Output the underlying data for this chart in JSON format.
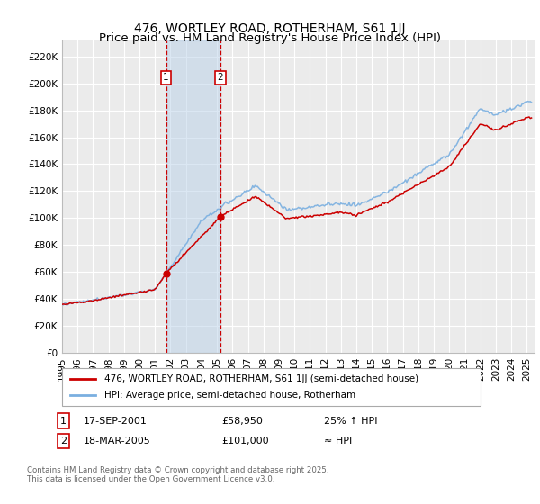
{
  "title": "476, WORTLEY ROAD, ROTHERHAM, S61 1JJ",
  "subtitle": "Price paid vs. HM Land Registry's House Price Index (HPI)",
  "yticks": [
    0,
    20000,
    40000,
    60000,
    80000,
    100000,
    120000,
    140000,
    160000,
    180000,
    200000,
    220000
  ],
  "ytick_labels": [
    "£0",
    "£20K",
    "£40K",
    "£60K",
    "£80K",
    "£100K",
    "£120K",
    "£140K",
    "£160K",
    "£180K",
    "£200K",
    "£220K"
  ],
  "ylim": [
    0,
    232000
  ],
  "xlim_start": 1995.0,
  "xlim_end": 2025.5,
  "xtick_years": [
    1995,
    1996,
    1997,
    1998,
    1999,
    2000,
    2001,
    2002,
    2003,
    2004,
    2005,
    2006,
    2007,
    2008,
    2009,
    2010,
    2011,
    2012,
    2013,
    2014,
    2015,
    2016,
    2017,
    2018,
    2019,
    2020,
    2021,
    2022,
    2023,
    2024,
    2025
  ],
  "background_color": "#ffffff",
  "plot_bg_color": "#ebebeb",
  "grid_color": "#ffffff",
  "hpi_line_color": "#7aafe0",
  "price_line_color": "#cc0000",
  "sale1_date_x": 2001.71,
  "sale1_price": 58950,
  "sale2_date_x": 2005.21,
  "sale2_price": 101000,
  "shade_color": "#b8d0e8",
  "shade_alpha": 0.5,
  "legend_entries": [
    "476, WORTLEY ROAD, ROTHERHAM, S61 1JJ (semi-detached house)",
    "HPI: Average price, semi-detached house, Rotherham"
  ],
  "annotation1": [
    "1",
    "17-SEP-2001",
    "£58,950",
    "25% ↑ HPI"
  ],
  "annotation2": [
    "2",
    "18-MAR-2005",
    "£101,000",
    "≈ HPI"
  ],
  "footnote": "Contains HM Land Registry data © Crown copyright and database right 2025.\nThis data is licensed under the Open Government Licence v3.0.",
  "title_fontsize": 10,
  "tick_fontsize": 7.5,
  "legend_fontsize": 7.5,
  "annot_fontsize": 8
}
